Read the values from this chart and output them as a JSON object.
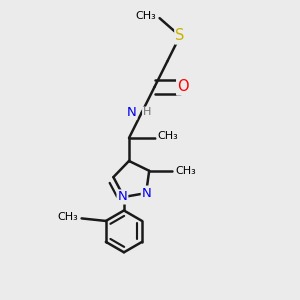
{
  "background_color": "#ebebeb",
  "atom_colors": {
    "S": "#c8b400",
    "O": "#ff0000",
    "N_pyraz": "#0000ee",
    "N_amide": "#0000ee",
    "H": "#707070",
    "C": "#000000"
  },
  "bond_color": "#1a1a1a",
  "bond_width": 1.8,
  "figsize": [
    3.0,
    3.0
  ],
  "dpi": 100,
  "xlim": [
    0.0,
    1.0
  ],
  "ylim": [
    0.0,
    1.0
  ]
}
